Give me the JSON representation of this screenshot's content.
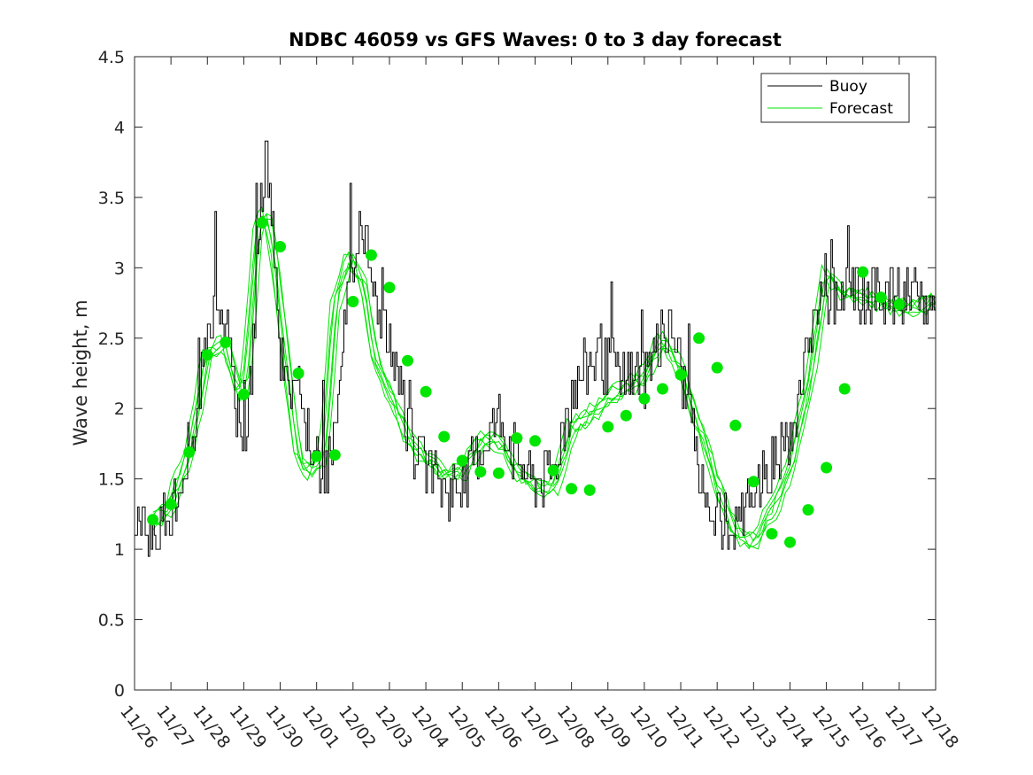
{
  "chart_data": {
    "type": "line",
    "title": "NDBC 46059 vs GFS Waves: 0 to 3 day forecast",
    "xlabel": "",
    "ylabel": "Wave height, m",
    "xlim": [
      0,
      22
    ],
    "ylim": [
      0,
      4.5
    ],
    "yticks": [
      "0",
      "0.5",
      "1",
      "1.5",
      "2",
      "2.5",
      "3",
      "3.5",
      "4",
      "4.5"
    ],
    "xtick_labels": [
      "11/26",
      "11/27",
      "11/28",
      "11/29",
      "11/30",
      "12/01",
      "12/02",
      "12/03",
      "12/04",
      "12/05",
      "12/06",
      "12/07",
      "12/08",
      "12/09",
      "12/10",
      "12/11",
      "12/12",
      "12/13",
      "12/14",
      "12/15",
      "12/16",
      "12/17",
      "12/18"
    ],
    "legend": {
      "position": "top-right",
      "entries": [
        "Buoy",
        "Forecast"
      ]
    },
    "colors": {
      "buoy": "#000000",
      "forecast": "#00e600",
      "axis": "#262626"
    },
    "buoy_anchors": {
      "x": [
        0,
        0.2,
        0.5,
        1.0,
        1.5,
        2.0,
        2.3,
        2.6,
        2.8,
        3.0,
        3.2,
        3.4,
        3.6,
        3.8,
        3.95,
        4.2,
        4.5,
        4.8,
        5.2,
        5.5,
        5.8,
        6.2,
        6.5,
        6.8,
        7.2,
        7.5,
        8.0,
        8.5,
        9.0,
        9.5,
        10.0,
        10.5,
        11.0,
        11.5,
        12.0,
        12.5,
        13.0,
        13.3,
        13.6,
        14.0,
        14.5,
        14.8,
        15.2,
        15.5,
        15.7,
        16.0,
        16.5,
        17.0,
        17.5,
        18.0,
        18.3,
        18.5,
        18.8,
        19.2,
        19.6,
        20.0,
        20.3,
        20.6,
        21.0,
        21.5,
        22.0
      ],
      "y": [
        1.2,
        1.15,
        1.12,
        1.25,
        1.7,
        2.45,
        2.75,
        2.6,
        2.0,
        1.75,
        2.2,
        3.2,
        3.85,
        3.3,
        2.4,
        2.2,
        2.1,
        1.7,
        1.55,
        1.8,
        2.7,
        3.35,
        3.05,
        2.55,
        2.2,
        1.85,
        1.55,
        1.45,
        1.45,
        1.75,
        1.95,
        1.65,
        1.5,
        1.55,
        2.15,
        2.35,
        2.35,
        2.3,
        2.2,
        2.25,
        2.55,
        2.55,
        2.0,
        1.55,
        1.35,
        1.2,
        1.15,
        1.4,
        1.6,
        1.8,
        2.05,
        2.55,
        2.75,
        2.8,
        2.8,
        2.85,
        2.85,
        2.85,
        2.8,
        2.75,
        2.75
      ]
    },
    "forecast_anchors": {
      "x": [
        0.5,
        1.0,
        1.5,
        2.0,
        2.5,
        2.85,
        3.05,
        3.4,
        3.6,
        3.8,
        4.2,
        4.5,
        4.8,
        5.2,
        5.5,
        5.9,
        6.3,
        6.6,
        7.0,
        7.5,
        8.0,
        8.5,
        9.0,
        9.5,
        10.0,
        10.5,
        11.0,
        11.5,
        12.0,
        12.5,
        13.0,
        13.5,
        14.0,
        14.5,
        15.0,
        15.5,
        16.0,
        16.5,
        17.0,
        17.5,
        18.0,
        18.5,
        19.0,
        19.5,
        20.0,
        20.5,
        21.0,
        21.5,
        22.0
      ],
      "y": [
        1.2,
        1.32,
        1.7,
        2.38,
        2.47,
        2.1,
        2.2,
        3.32,
        3.4,
        3.15,
        2.25,
        1.66,
        1.55,
        1.67,
        2.75,
        3.08,
        2.88,
        2.34,
        2.12,
        1.8,
        1.63,
        1.54,
        1.55,
        1.78,
        1.76,
        1.55,
        1.44,
        1.42,
        1.86,
        1.95,
        2.07,
        2.14,
        2.24,
        2.5,
        2.28,
        1.88,
        1.48,
        1.11,
        1.05,
        1.27,
        1.57,
        2.14,
        2.97,
        2.79,
        2.8,
        2.75,
        2.72,
        2.72,
        2.75
      ]
    },
    "forecast_markers": {
      "x": [
        0.5,
        1.0,
        1.5,
        2.0,
        2.5,
        3.0,
        3.5,
        4.0,
        4.5,
        5.0,
        5.5,
        6.0,
        6.5,
        7.0,
        7.5,
        8.0,
        8.5,
        9.0,
        9.5,
        10.0,
        10.5,
        11.0,
        11.5,
        12.0,
        12.5,
        13.0,
        13.5,
        14.0,
        14.5,
        15.0,
        15.5,
        16.0,
        16.5,
        17.0,
        17.5,
        18.0,
        18.5,
        19.0,
        19.5,
        20.0,
        20.5,
        21.0
      ],
      "y": [
        1.21,
        1.32,
        1.69,
        2.38,
        2.47,
        2.1,
        3.32,
        3.15,
        2.25,
        1.66,
        1.67,
        2.76,
        3.09,
        2.86,
        2.34,
        2.12,
        1.8,
        1.63,
        1.55,
        1.54,
        1.79,
        1.77,
        1.56,
        1.43,
        1.42,
        1.87,
        1.95,
        2.07,
        2.14,
        2.24,
        2.5,
        2.29,
        1.88,
        1.48,
        1.11,
        1.05,
        1.28,
        1.58,
        2.14,
        2.97,
        2.79,
        2.74
      ]
    }
  }
}
